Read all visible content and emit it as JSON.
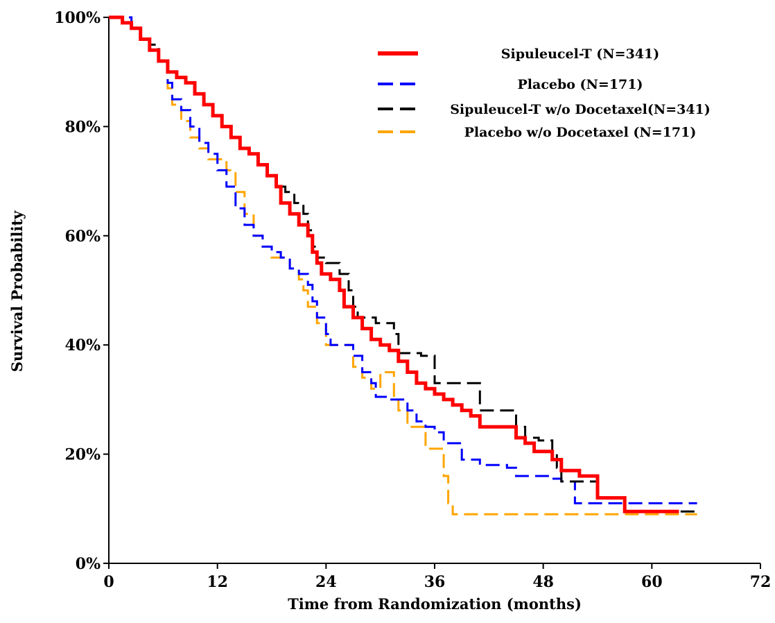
{
  "chart_data": {
    "type": "line",
    "step": true,
    "title": "",
    "xlabel": "Time from Randomization (months)",
    "ylabel": "Survival Probability",
    "xlim": [
      0,
      72
    ],
    "ylim": [
      0,
      100
    ],
    "x_ticks": [
      0,
      12,
      24,
      36,
      48,
      60,
      72
    ],
    "x_tick_labels": [
      "0",
      "12",
      "24",
      "36",
      "48",
      "60",
      "72"
    ],
    "y_ticks": [
      0,
      20,
      40,
      60,
      80,
      100
    ],
    "y_tick_labels": [
      "0%",
      "20%",
      "40%",
      "60%",
      "80%",
      "100%"
    ],
    "grid": false,
    "legend_position": "top-right",
    "series": [
      {
        "name": "Sipuleucel-T (N=341)",
        "color": "#ff0000",
        "dash": "solid",
        "points": [
          [
            0,
            100
          ],
          [
            1.5,
            99
          ],
          [
            2.5,
            98
          ],
          [
            3.5,
            96
          ],
          [
            4.5,
            94
          ],
          [
            5.5,
            92
          ],
          [
            6.5,
            90
          ],
          [
            7.5,
            89
          ],
          [
            8.5,
            88
          ],
          [
            9.5,
            86
          ],
          [
            10.5,
            84
          ],
          [
            11.5,
            82
          ],
          [
            12.5,
            80
          ],
          [
            13.5,
            78
          ],
          [
            14.5,
            76
          ],
          [
            15.5,
            75
          ],
          [
            16.5,
            73
          ],
          [
            17.5,
            71
          ],
          [
            18.5,
            69
          ],
          [
            19,
            66
          ],
          [
            20,
            64
          ],
          [
            21,
            62
          ],
          [
            22,
            60
          ],
          [
            22.5,
            57
          ],
          [
            23,
            55
          ],
          [
            23.5,
            53
          ],
          [
            24.5,
            52
          ],
          [
            25.5,
            50
          ],
          [
            26,
            47
          ],
          [
            27,
            45
          ],
          [
            28,
            43
          ],
          [
            29,
            41
          ],
          [
            30,
            40
          ],
          [
            31,
            39
          ],
          [
            32,
            37
          ],
          [
            33,
            35
          ],
          [
            34,
            33
          ],
          [
            35,
            32
          ],
          [
            36,
            31
          ],
          [
            37,
            30
          ],
          [
            38,
            29
          ],
          [
            39,
            28
          ],
          [
            40,
            27
          ],
          [
            41,
            25
          ],
          [
            42,
            25
          ],
          [
            44,
            25
          ],
          [
            45,
            23
          ],
          [
            46,
            22
          ],
          [
            47,
            20.5
          ],
          [
            48,
            20.5
          ],
          [
            49,
            19
          ],
          [
            50,
            17
          ],
          [
            51,
            17
          ],
          [
            52,
            16
          ],
          [
            53,
            16
          ],
          [
            54,
            12
          ],
          [
            55,
            12
          ],
          [
            57,
            9.5
          ],
          [
            59,
            9.5
          ],
          [
            63,
            9.5
          ]
        ]
      },
      {
        "name": "Placebo (N=171)",
        "color": "#0000ff",
        "dash": "dashed",
        "points": [
          [
            0,
            100
          ],
          [
            1.5,
            100
          ],
          [
            2.5,
            98
          ],
          [
            3.5,
            96
          ],
          [
            4.5,
            94
          ],
          [
            5.5,
            92
          ],
          [
            6.5,
            88
          ],
          [
            7,
            85
          ],
          [
            8,
            83
          ],
          [
            9,
            80
          ],
          [
            10,
            77
          ],
          [
            11,
            75
          ],
          [
            12,
            72
          ],
          [
            13,
            69
          ],
          [
            14,
            65
          ],
          [
            15,
            62
          ],
          [
            16,
            60
          ],
          [
            17,
            58
          ],
          [
            18,
            57
          ],
          [
            19,
            56
          ],
          [
            20,
            54
          ],
          [
            21,
            53
          ],
          [
            22,
            51
          ],
          [
            22.5,
            48
          ],
          [
            23,
            45
          ],
          [
            24,
            42
          ],
          [
            24.5,
            40
          ],
          [
            26,
            40
          ],
          [
            27,
            38
          ],
          [
            28,
            35
          ],
          [
            29,
            33
          ],
          [
            29.5,
            30.5
          ],
          [
            31,
            30
          ],
          [
            32,
            30
          ],
          [
            33,
            28
          ],
          [
            34,
            26
          ],
          [
            35,
            25
          ],
          [
            36,
            24
          ],
          [
            37,
            22
          ],
          [
            38.5,
            22
          ],
          [
            39,
            19
          ],
          [
            41,
            18
          ],
          [
            42,
            18
          ],
          [
            44,
            17.5
          ],
          [
            45,
            16
          ],
          [
            48,
            16
          ],
          [
            49,
            15.5
          ],
          [
            50,
            15
          ],
          [
            51.5,
            11
          ],
          [
            60,
            11
          ],
          [
            65,
            11
          ]
        ]
      },
      {
        "name": "Sipuleucel-T w/o Docetaxel(N=341)",
        "color": "#000000",
        "dash": "dashed",
        "points": [
          [
            0,
            100
          ],
          [
            1.5,
            99
          ],
          [
            2.5,
            98
          ],
          [
            3.5,
            96
          ],
          [
            4.5,
            95
          ],
          [
            5.5,
            92
          ],
          [
            6.5,
            90
          ],
          [
            7.5,
            89
          ],
          [
            8.5,
            88
          ],
          [
            9.5,
            86
          ],
          [
            10.5,
            84
          ],
          [
            11.5,
            82
          ],
          [
            12.5,
            80
          ],
          [
            13.5,
            78
          ],
          [
            14.5,
            76
          ],
          [
            15.5,
            75
          ],
          [
            16.5,
            73
          ],
          [
            17.5,
            71
          ],
          [
            18.5,
            69
          ],
          [
            19.5,
            68
          ],
          [
            20.5,
            66
          ],
          [
            21.5,
            64
          ],
          [
            22,
            61
          ],
          [
            22.5,
            58
          ],
          [
            23,
            56
          ],
          [
            24,
            55
          ],
          [
            25.5,
            53
          ],
          [
            26.5,
            50
          ],
          [
            27,
            47
          ],
          [
            27.5,
            45
          ],
          [
            29.5,
            44
          ],
          [
            30.5,
            44
          ],
          [
            31.5,
            42
          ],
          [
            32,
            38.5
          ],
          [
            34.5,
            38
          ],
          [
            36,
            33
          ],
          [
            38,
            33
          ],
          [
            40,
            33
          ],
          [
            41,
            28
          ],
          [
            44.5,
            28
          ],
          [
            45,
            25
          ],
          [
            46,
            23
          ],
          [
            47.5,
            22.5
          ],
          [
            49,
            20
          ],
          [
            49.5,
            17.5
          ],
          [
            50,
            15
          ],
          [
            52,
            15
          ],
          [
            54,
            12
          ],
          [
            55,
            12
          ],
          [
            57,
            9.5
          ],
          [
            63,
            9.5
          ],
          [
            65,
            9
          ]
        ]
      },
      {
        "name": "Placebo w/o Docetaxel (N=171)",
        "color": "#ffa500",
        "dash": "dashed",
        "points": [
          [
            0,
            100
          ],
          [
            1.5,
            100
          ],
          [
            2.5,
            98
          ],
          [
            3.5,
            96
          ],
          [
            4.5,
            94
          ],
          [
            5.5,
            92
          ],
          [
            6.5,
            87
          ],
          [
            7,
            84
          ],
          [
            8,
            81
          ],
          [
            9,
            78
          ],
          [
            10,
            76
          ],
          [
            11,
            74
          ],
          [
            12,
            74
          ],
          [
            13,
            72
          ],
          [
            14,
            68
          ],
          [
            15,
            64
          ],
          [
            16,
            60
          ],
          [
            17,
            58
          ],
          [
            18,
            56
          ],
          [
            19,
            56
          ],
          [
            20,
            54
          ],
          [
            21,
            52
          ],
          [
            21.5,
            50
          ],
          [
            22,
            47
          ],
          [
            23,
            44
          ],
          [
            24,
            40
          ],
          [
            26,
            40
          ],
          [
            27,
            36
          ],
          [
            28,
            34
          ],
          [
            29,
            32
          ],
          [
            30,
            35
          ],
          [
            31,
            35
          ],
          [
            31.5,
            30
          ],
          [
            32,
            28
          ],
          [
            33,
            25
          ],
          [
            34.5,
            25
          ],
          [
            35,
            21
          ],
          [
            36.5,
            21
          ],
          [
            37,
            16
          ],
          [
            37.5,
            11
          ],
          [
            38,
            9
          ],
          [
            48,
            9
          ],
          [
            60,
            9
          ],
          [
            65,
            9
          ]
        ]
      }
    ]
  }
}
